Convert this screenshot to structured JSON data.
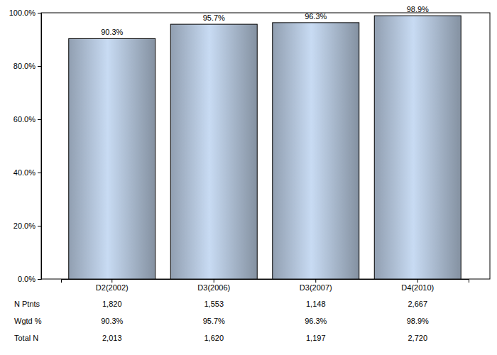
{
  "chart_data": {
    "type": "bar",
    "categories": [
      "D2(2002)",
      "D3(2006)",
      "D3(2007)",
      "D4(2010)"
    ],
    "values": [
      90.3,
      95.7,
      96.3,
      98.9
    ],
    "value_labels": [
      "90.3%",
      "95.7%",
      "96.3%",
      "98.9%"
    ],
    "data_labels": true,
    "color": "#a4b4c8",
    "ylim": [
      0,
      100
    ],
    "yticks": [
      {
        "value": 0,
        "label": "0.0%"
      },
      {
        "value": 20,
        "label": "20.0%"
      },
      {
        "value": 40,
        "label": "40.0%"
      },
      {
        "value": 60,
        "label": "60.0%"
      },
      {
        "value": 80,
        "label": "80.0%"
      },
      {
        "value": 100,
        "label": "100.0%"
      }
    ],
    "table": {
      "rows": [
        {
          "label": "N Ptnts",
          "values": [
            "1,820",
            "1,553",
            "1,148",
            "2,667"
          ]
        },
        {
          "label": "Wgtd %",
          "values": [
            "90.3%",
            "95.7%",
            "96.3%",
            "98.9%"
          ]
        },
        {
          "label": "Total N",
          "values": [
            "2,013",
            "1,620",
            "1,197",
            "2,720"
          ]
        }
      ]
    }
  }
}
